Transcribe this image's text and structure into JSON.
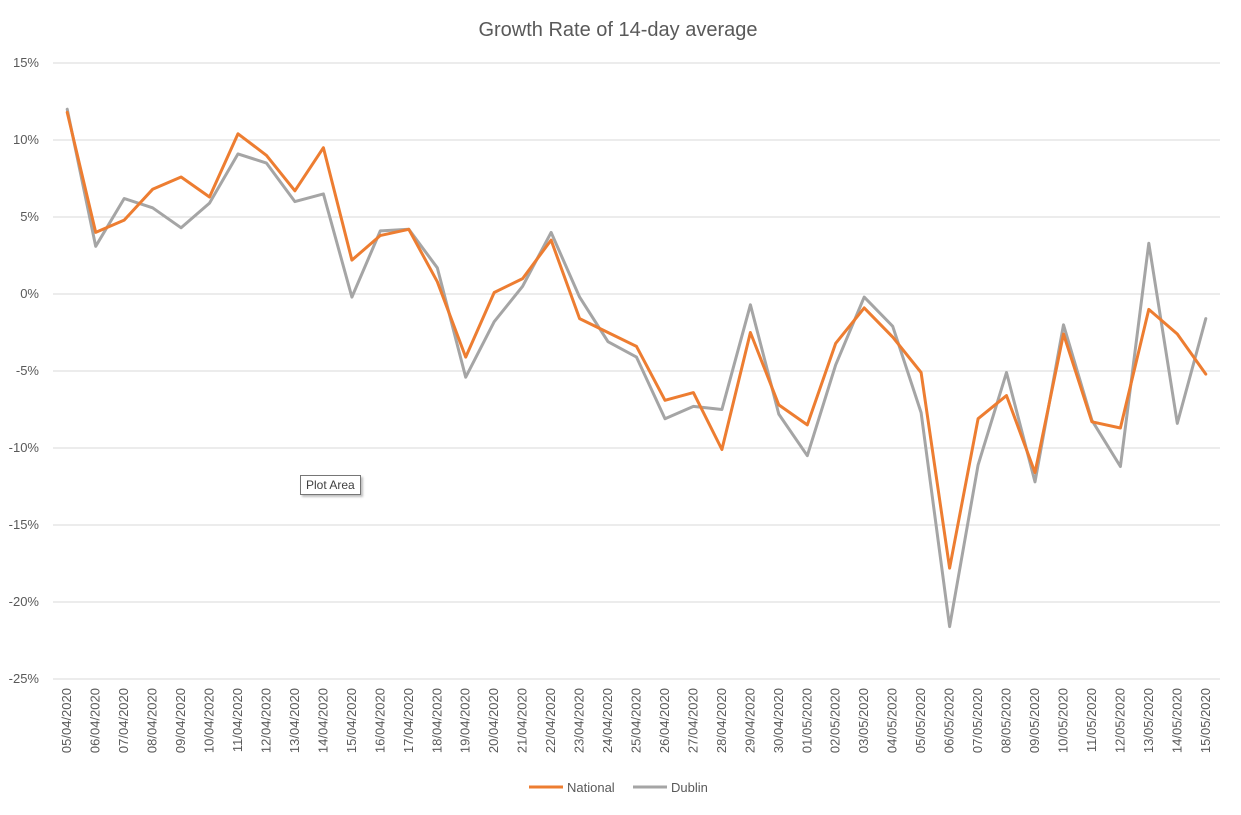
{
  "chart_data": {
    "type": "line",
    "title": "Growth Rate of 14-day average",
    "xlabel": "",
    "ylabel": "",
    "ylim": [
      -25,
      15
    ],
    "yticks": [
      15,
      10,
      5,
      0,
      -5,
      -10,
      -15,
      -20,
      -25
    ],
    "ytick_labels": [
      "15%",
      "10%",
      "5%",
      "0%",
      "-5%",
      "-10%",
      "-15%",
      "-20%",
      "-25%"
    ],
    "grid": true,
    "legend_position": "bottom",
    "categories": [
      "05/04/2020",
      "06/04/2020",
      "07/04/2020",
      "08/04/2020",
      "09/04/2020",
      "10/04/2020",
      "11/04/2020",
      "12/04/2020",
      "13/04/2020",
      "14/04/2020",
      "15/04/2020",
      "16/04/2020",
      "17/04/2020",
      "18/04/2020",
      "19/04/2020",
      "20/04/2020",
      "21/04/2020",
      "22/04/2020",
      "23/04/2020",
      "24/04/2020",
      "25/04/2020",
      "26/04/2020",
      "27/04/2020",
      "28/04/2020",
      "29/04/2020",
      "30/04/2020",
      "01/05/2020",
      "02/05/2020",
      "03/05/2020",
      "04/05/2020",
      "05/05/2020",
      "06/05/2020",
      "07/05/2020",
      "08/05/2020",
      "09/05/2020",
      "10/05/2020",
      "11/05/2020",
      "12/05/2020",
      "13/05/2020",
      "14/05/2020",
      "15/05/2020"
    ],
    "series": [
      {
        "name": "National",
        "color": "#ED7D31",
        "values": [
          11.8,
          4.0,
          4.8,
          6.8,
          7.6,
          6.3,
          10.4,
          9.0,
          6.7,
          9.5,
          2.2,
          3.8,
          4.2,
          0.8,
          -4.1,
          0.1,
          1.0,
          3.5,
          -1.6,
          -2.5,
          -3.4,
          -6.9,
          -6.4,
          -10.1,
          -2.5,
          -7.2,
          -8.5,
          -3.2,
          -0.9,
          -2.8,
          -5.1,
          -17.8,
          -8.1,
          -6.6,
          -11.6,
          -2.6,
          -8.3,
          -8.7,
          -1.0,
          -2.6,
          -5.2
        ]
      },
      {
        "name": "Dublin",
        "color": "#A5A5A5",
        "values": [
          12.0,
          3.1,
          6.2,
          5.6,
          4.3,
          5.9,
          9.1,
          8.5,
          6.0,
          6.5,
          -0.2,
          4.1,
          4.2,
          1.7,
          -5.4,
          -1.8,
          0.5,
          4.0,
          -0.2,
          -3.1,
          -4.1,
          -8.1,
          -7.3,
          -7.5,
          -0.7,
          -7.8,
          -10.5,
          -4.6,
          -0.2,
          -2.1,
          -7.7,
          -21.6,
          -11.1,
          -5.1,
          -12.2,
          -2.0,
          -8.2,
          -11.2,
          3.3,
          -8.4,
          -1.6
        ]
      }
    ]
  },
  "tooltip": {
    "label": "Plot Area"
  }
}
